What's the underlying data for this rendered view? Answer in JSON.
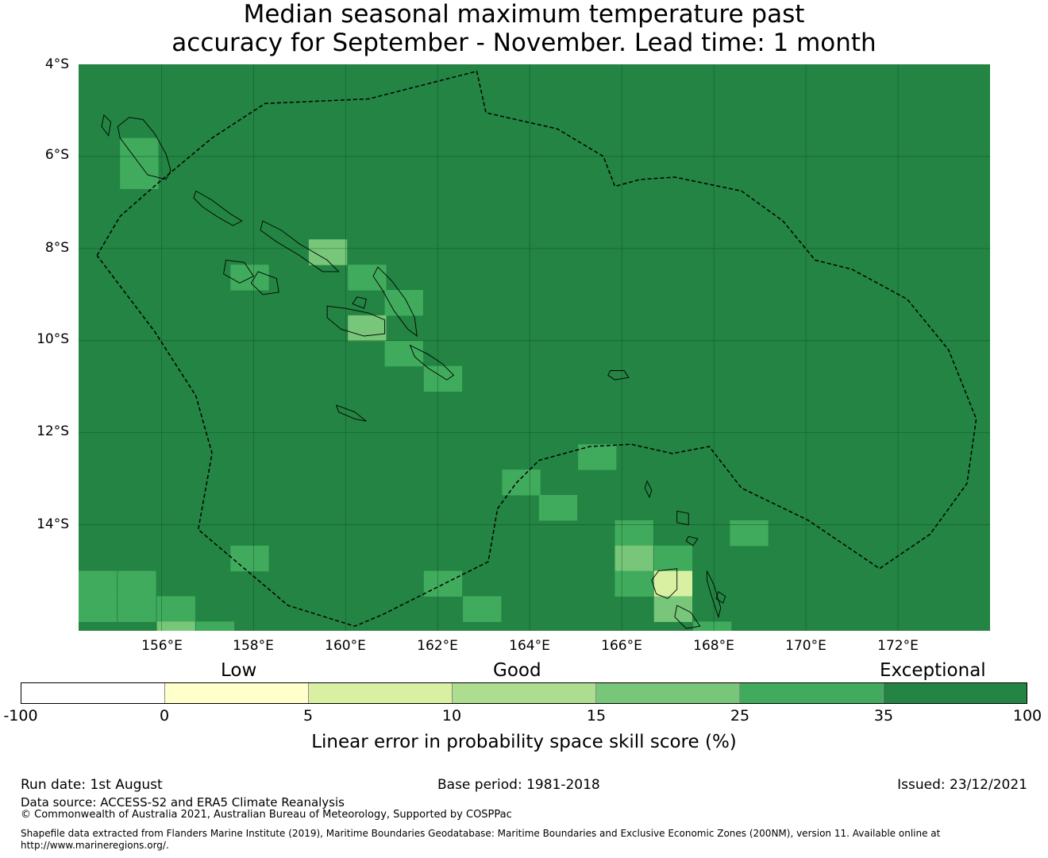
{
  "title": {
    "line1": "Median seasonal maximum temperature past",
    "line2": "accuracy for September - November. Lead time: 1 month"
  },
  "map": {
    "lat_labels": [
      "4°S",
      "6°S",
      "8°S",
      "10°S",
      "12°S",
      "14°S"
    ],
    "lon_labels": [
      "156°E",
      "158°E",
      "160°E",
      "162°E",
      "164°E",
      "166°E",
      "168°E",
      "170°E",
      "172°E"
    ],
    "lon_min": 154.2,
    "lon_max": 174.0,
    "lat_top": -4.0,
    "lat_bottom": -16.3,
    "grid_lats": [
      -4,
      -6,
      -8,
      -10,
      -12,
      -14
    ],
    "grid_lons": [
      156,
      158,
      160,
      162,
      164,
      166,
      168,
      170,
      172
    ],
    "background_category": "35-100",
    "cell_size_deg": 0.833,
    "cells": [
      {
        "lon": 155.1,
        "lat": -5.6,
        "cat": "25-35"
      },
      {
        "lon": 155.1,
        "lat": -6.15,
        "cat": "25-35"
      },
      {
        "lon": 159.2,
        "lat": -7.8,
        "cat": "15-25"
      },
      {
        "lon": 160.05,
        "lat": -8.35,
        "cat": "25-35"
      },
      {
        "lon": 160.85,
        "lat": -8.9,
        "cat": "25-35"
      },
      {
        "lon": 157.5,
        "lat": -8.35,
        "cat": "25-35"
      },
      {
        "lon": 160.05,
        "lat": -9.45,
        "cat": "15-25"
      },
      {
        "lon": 160.85,
        "lat": -10.0,
        "cat": "25-35"
      },
      {
        "lon": 161.7,
        "lat": -10.55,
        "cat": "25-35"
      },
      {
        "lon": 165.05,
        "lat": -12.25,
        "cat": "25-35"
      },
      {
        "lon": 163.4,
        "lat": -12.8,
        "cat": "25-35"
      },
      {
        "lon": 164.2,
        "lat": -13.35,
        "cat": "25-35"
      },
      {
        "lon": 165.85,
        "lat": -13.9,
        "cat": "25-35"
      },
      {
        "lon": 168.35,
        "lat": -13.9,
        "cat": "25-35"
      },
      {
        "lon": 157.5,
        "lat": -14.45,
        "cat": "25-35"
      },
      {
        "lon": 165.85,
        "lat": -14.45,
        "cat": "15-25"
      },
      {
        "lon": 166.7,
        "lat": -14.45,
        "cat": "25-35"
      },
      {
        "lon": 165.85,
        "lat": -15.0,
        "cat": "25-35"
      },
      {
        "lon": 166.7,
        "lat": -15.0,
        "cat": "5-10"
      },
      {
        "lon": 161.7,
        "lat": -15.0,
        "cat": "25-35"
      },
      {
        "lon": 162.55,
        "lat": -15.55,
        "cat": "25-35"
      },
      {
        "lon": 166.7,
        "lat": -15.55,
        "cat": "15-25"
      },
      {
        "lon": 167.55,
        "lat": -16.1,
        "cat": "25-35"
      },
      {
        "lon": 154.2,
        "lat": -15.0,
        "cat": "25-35"
      },
      {
        "lon": 155.05,
        "lat": -15.0,
        "cat": "25-35"
      },
      {
        "lon": 154.2,
        "lat": -15.55,
        "cat": "25-35"
      },
      {
        "lon": 155.05,
        "lat": -15.55,
        "cat": "25-35"
      },
      {
        "lon": 155.9,
        "lat": -15.55,
        "cat": "25-35"
      },
      {
        "lon": 155.9,
        "lat": -16.1,
        "cat": "15-25"
      },
      {
        "lon": 156.75,
        "lat": -16.1,
        "cat": "25-35"
      }
    ],
    "eez_boundary": [
      [
        154.6,
        -8.15
      ],
      [
        155.1,
        -7.3
      ],
      [
        155.9,
        -6.6
      ],
      [
        157.1,
        -5.6
      ],
      [
        158.25,
        -4.85
      ],
      [
        160.5,
        -4.75
      ],
      [
        162.85,
        -4.15
      ],
      [
        163.05,
        -5.05
      ],
      [
        164.6,
        -5.4
      ],
      [
        165.6,
        -6.0
      ],
      [
        165.85,
        -6.65
      ],
      [
        166.4,
        -6.5
      ],
      [
        167.15,
        -6.45
      ],
      [
        168.6,
        -6.75
      ],
      [
        169.5,
        -7.4
      ],
      [
        170.2,
        -8.25
      ],
      [
        171.0,
        -8.45
      ],
      [
        172.2,
        -9.1
      ],
      [
        173.1,
        -10.2
      ],
      [
        173.7,
        -11.7
      ],
      [
        173.5,
        -13.1
      ],
      [
        172.7,
        -14.2
      ],
      [
        171.6,
        -14.95
      ],
      [
        170.05,
        -13.9
      ],
      [
        168.6,
        -13.2
      ],
      [
        167.9,
        -12.3
      ],
      [
        167.1,
        -12.45
      ],
      [
        166.2,
        -12.25
      ],
      [
        165.3,
        -12.3
      ],
      [
        164.2,
        -12.6
      ],
      [
        163.7,
        -13.1
      ],
      [
        163.3,
        -13.65
      ],
      [
        163.1,
        -14.8
      ],
      [
        160.8,
        -15.95
      ],
      [
        160.2,
        -16.2
      ],
      [
        158.75,
        -15.75
      ],
      [
        156.8,
        -14.1
      ],
      [
        157.1,
        -12.45
      ],
      [
        156.75,
        -11.2
      ],
      [
        155.85,
        -9.8
      ],
      [
        154.6,
        -8.15
      ]
    ],
    "islands": [
      [
        [
          155.6,
          -5.2
        ],
        [
          155.85,
          -5.5
        ],
        [
          156.1,
          -5.95
        ],
        [
          156.2,
          -6.3
        ],
        [
          156.1,
          -6.5
        ],
        [
          155.7,
          -6.4
        ],
        [
          155.4,
          -6.0
        ],
        [
          155.1,
          -5.6
        ],
        [
          155.05,
          -5.35
        ],
        [
          155.3,
          -5.15
        ]
      ],
      [
        [
          154.75,
          -5.1
        ],
        [
          154.9,
          -5.25
        ],
        [
          154.85,
          -5.55
        ],
        [
          154.7,
          -5.35
        ]
      ],
      [
        [
          156.75,
          -6.75
        ],
        [
          157.1,
          -6.95
        ],
        [
          157.5,
          -7.25
        ],
        [
          157.75,
          -7.4
        ],
        [
          157.55,
          -7.5
        ],
        [
          157.2,
          -7.3
        ],
        [
          156.9,
          -7.1
        ],
        [
          156.7,
          -6.9
        ]
      ],
      [
        [
          158.2,
          -7.4
        ],
        [
          158.6,
          -7.6
        ],
        [
          159.0,
          -7.9
        ],
        [
          159.6,
          -8.25
        ],
        [
          159.85,
          -8.5
        ],
        [
          159.5,
          -8.5
        ],
        [
          159.0,
          -8.15
        ],
        [
          158.5,
          -7.85
        ],
        [
          158.15,
          -7.6
        ]
      ],
      [
        [
          157.4,
          -8.25
        ],
        [
          157.8,
          -8.3
        ],
        [
          158.0,
          -8.6
        ],
        [
          157.7,
          -8.75
        ],
        [
          157.35,
          -8.55
        ]
      ],
      [
        [
          158.1,
          -8.5
        ],
        [
          158.5,
          -8.65
        ],
        [
          158.55,
          -8.95
        ],
        [
          158.2,
          -9.0
        ],
        [
          157.95,
          -8.75
        ]
      ],
      [
        [
          160.7,
          -8.4
        ],
        [
          161.0,
          -8.7
        ],
        [
          161.3,
          -9.1
        ],
        [
          161.5,
          -9.5
        ],
        [
          161.55,
          -9.9
        ],
        [
          161.35,
          -9.75
        ],
        [
          161.05,
          -9.35
        ],
        [
          160.8,
          -8.9
        ],
        [
          160.6,
          -8.6
        ]
      ],
      [
        [
          159.6,
          -9.25
        ],
        [
          160.0,
          -9.3
        ],
        [
          160.5,
          -9.4
        ],
        [
          160.85,
          -9.55
        ],
        [
          160.85,
          -9.85
        ],
        [
          160.4,
          -9.9
        ],
        [
          159.9,
          -9.75
        ],
        [
          159.6,
          -9.5
        ]
      ],
      [
        [
          160.25,
          -9.05
        ],
        [
          160.45,
          -9.1
        ],
        [
          160.4,
          -9.3
        ],
        [
          160.15,
          -9.2
        ]
      ],
      [
        [
          161.4,
          -10.1
        ],
        [
          161.8,
          -10.3
        ],
        [
          162.1,
          -10.5
        ],
        [
          162.35,
          -10.75
        ],
        [
          162.2,
          -10.85
        ],
        [
          161.8,
          -10.6
        ],
        [
          161.5,
          -10.35
        ]
      ],
      [
        [
          159.8,
          -11.4
        ],
        [
          160.2,
          -11.55
        ],
        [
          160.45,
          -11.75
        ],
        [
          160.2,
          -11.7
        ],
        [
          159.85,
          -11.55
        ]
      ],
      [
        [
          165.75,
          -10.65
        ],
        [
          166.05,
          -10.65
        ],
        [
          166.15,
          -10.8
        ],
        [
          165.85,
          -10.85
        ],
        [
          165.7,
          -10.75
        ]
      ],
      [
        [
          166.8,
          -15.0
        ],
        [
          167.2,
          -14.95
        ],
        [
          167.2,
          -15.4
        ],
        [
          167.0,
          -15.6
        ],
        [
          166.75,
          -15.5
        ],
        [
          166.65,
          -15.2
        ]
      ],
      [
        [
          167.85,
          -15.0
        ],
        [
          168.0,
          -15.3
        ],
        [
          168.15,
          -15.8
        ],
        [
          168.1,
          -16.0
        ],
        [
          167.95,
          -15.55
        ],
        [
          167.85,
          -15.2
        ]
      ],
      [
        [
          167.2,
          -15.75
        ],
        [
          167.5,
          -15.9
        ],
        [
          167.7,
          -16.2
        ],
        [
          167.4,
          -16.25
        ],
        [
          167.15,
          -16.0
        ]
      ],
      [
        [
          167.2,
          -13.7
        ],
        [
          167.45,
          -13.75
        ],
        [
          167.45,
          -14.0
        ],
        [
          167.2,
          -13.95
        ]
      ],
      [
        [
          166.55,
          -13.05
        ],
        [
          166.65,
          -13.25
        ],
        [
          166.6,
          -13.4
        ],
        [
          166.5,
          -13.2
        ]
      ],
      [
        [
          167.45,
          -14.25
        ],
        [
          167.65,
          -14.3
        ],
        [
          167.55,
          -14.45
        ],
        [
          167.4,
          -14.35
        ]
      ],
      [
        [
          168.1,
          -15.45
        ],
        [
          168.25,
          -15.55
        ],
        [
          168.2,
          -15.7
        ],
        [
          168.05,
          -15.6
        ]
      ]
    ]
  },
  "legend": {
    "categories": [
      "Low",
      "Good",
      "Exceptional"
    ],
    "ticks": [
      "-100",
      "0",
      "5",
      "10",
      "15",
      "25",
      "35",
      "100"
    ],
    "colors": [
      "#ffffff",
      "#ffffcc",
      "#d9f0a3",
      "#addd8e",
      "#78c679",
      "#41ab5d",
      "#238443"
    ],
    "title": "Linear error in probability space skill score (%)"
  },
  "footer": {
    "run_date": "Run date: 1st August",
    "base_period": "Base period: 1981-2018",
    "issued": "Issued: 23/12/2021",
    "data_source": "Data source: ACCESS-S2 and ERA5 Climate Reanalysis",
    "copyright": "© Commonwealth of Australia 2021, Australian Bureau of Meteorology, Supported by COSPPac",
    "shapefile_line1": "Shapefile data extracted from Flanders Marine Institute (2019), Maritime Boundaries Geodatabase: Maritime Boundaries and Exclusive Economic Zones (200NM), version 11. Available online at",
    "shapefile_line2": "http://www.marineregions.org/."
  }
}
